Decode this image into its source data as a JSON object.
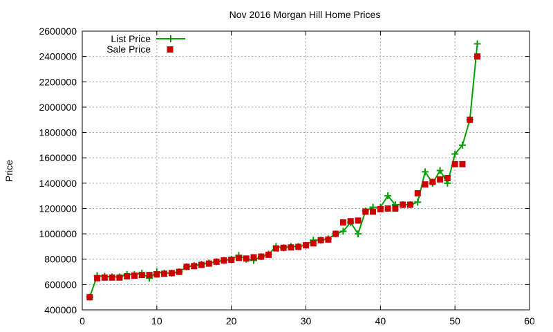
{
  "chart_data": {
    "type": "line",
    "title": "Nov 2016 Morgan Hill Home Prices",
    "xlabel": "",
    "ylabel": "Price",
    "xlim": [
      0,
      60
    ],
    "ylim": [
      400000,
      2600000
    ],
    "xticks": [
      0,
      10,
      20,
      30,
      40,
      50,
      60
    ],
    "yticks": [
      400000,
      600000,
      800000,
      1000000,
      1200000,
      1400000,
      1600000,
      1800000,
      2000000,
      2200000,
      2400000,
      2600000
    ],
    "grid": true,
    "legend_position": "top-left",
    "series": [
      {
        "name": "List Price",
        "style": "line-plus",
        "color": "#00a000",
        "x": [
          1,
          2,
          3,
          4,
          5,
          6,
          7,
          8,
          9,
          10,
          11,
          12,
          13,
          14,
          15,
          16,
          17,
          18,
          19,
          20,
          21,
          22,
          23,
          24,
          25,
          26,
          27,
          28,
          29,
          30,
          31,
          32,
          33,
          34,
          35,
          36,
          37,
          38,
          39,
          40,
          41,
          42,
          43,
          44,
          45,
          46,
          47,
          48,
          49,
          50,
          51,
          52,
          53
        ],
        "values": [
          500000,
          670000,
          665000,
          660000,
          660000,
          680000,
          680000,
          690000,
          650000,
          700000,
          690000,
          690000,
          700000,
          740000,
          750000,
          760000,
          770000,
          780000,
          790000,
          800000,
          830000,
          800000,
          790000,
          820000,
          840000,
          900000,
          890000,
          900000,
          900000,
          910000,
          950000,
          950000,
          960000,
          1000000,
          1020000,
          1090000,
          1000000,
          1180000,
          1210000,
          1210000,
          1300000,
          1230000,
          1230000,
          1230000,
          1250000,
          1490000,
          1400000,
          1500000,
          1400000,
          1630000,
          1700000,
          1900000,
          2500000
        ]
      },
      {
        "name": "Sale Price",
        "style": "square",
        "color": "#cc0000",
        "x": [
          1,
          2,
          3,
          4,
          5,
          6,
          7,
          8,
          9,
          10,
          11,
          12,
          13,
          14,
          15,
          16,
          17,
          18,
          19,
          20,
          21,
          22,
          23,
          24,
          25,
          26,
          27,
          28,
          29,
          30,
          31,
          32,
          33,
          34,
          35,
          36,
          37,
          38,
          39,
          40,
          41,
          42,
          43,
          44,
          45,
          46,
          47,
          48,
          49,
          50,
          51,
          52,
          53
        ],
        "values": [
          500000,
          650000,
          655000,
          655000,
          655000,
          665000,
          670000,
          675000,
          675000,
          680000,
          685000,
          690000,
          700000,
          740000,
          745000,
          755000,
          765000,
          780000,
          790000,
          795000,
          810000,
          805000,
          815000,
          820000,
          835000,
          885000,
          890000,
          893000,
          897000,
          910000,
          925000,
          950000,
          955000,
          1000000,
          1090000,
          1100000,
          1105000,
          1175000,
          1175000,
          1195000,
          1200000,
          1200000,
          1230000,
          1230000,
          1320000,
          1390000,
          1410000,
          1430000,
          1440000,
          1550000,
          1550000,
          1900000,
          2400000
        ]
      }
    ]
  }
}
